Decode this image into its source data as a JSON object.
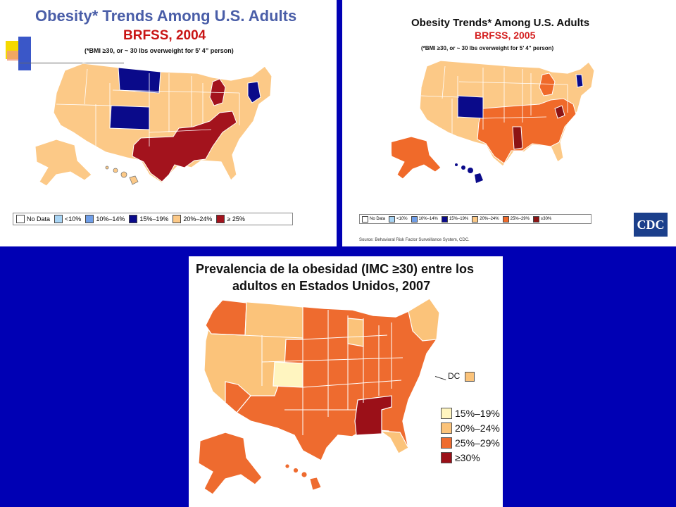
{
  "colors": {
    "background": "#0000b4",
    "no_data": "#ffffff",
    "lt10": "#a8d4f4",
    "p10_14": "#6f9ee8",
    "p15_19": "#0a0a8a",
    "p20_24": "#fcc987",
    "p25_29": "#f06a2a",
    "ge30_2004": "#a3131d",
    "ge30_2005": "#8c1414",
    "p15_19_2007": "#fff5c0",
    "p20_24_2007": "#fbc37a",
    "p25_29_2007": "#ee6b2f",
    "ge30_2007": "#9b1018"
  },
  "map2004": {
    "title": "Obesity* Trends Among U.S. Adults",
    "subtitle": "BRFSS, 2004",
    "note": "(*BMI ≥30, or ~ 30 lbs overweight for 5’ 4” person)",
    "legend": [
      "No Data",
      "<10%",
      "10%–14%",
      "15%–19%",
      "20%–24%",
      "≥ 25%"
    ]
  },
  "map2005": {
    "title": "Obesity Trends* Among U.S. Adults",
    "subtitle": "BRFSS, 2005",
    "note": "(*BMI ≥30, or ~ 30 lbs overweight for 5’ 4” person)",
    "legend": [
      "No Data",
      "<10%",
      "10%–14%",
      "15%–19%",
      "20%–24%",
      "25%–29%",
      "≥30%"
    ],
    "source": "Source: Behavioral Risk Factor Surveillance System, CDC.",
    "logo_text": "CDC"
  },
  "map2007": {
    "title_line1": "Prevalencia de la obesidad (IMC ≥30) entre los",
    "title_line2": "adultos en Estados Unidos, 2007",
    "dc_label": "DC",
    "legend": [
      "15%–19%",
      "20%–24%",
      "25%–29%",
      "≥30%"
    ]
  }
}
